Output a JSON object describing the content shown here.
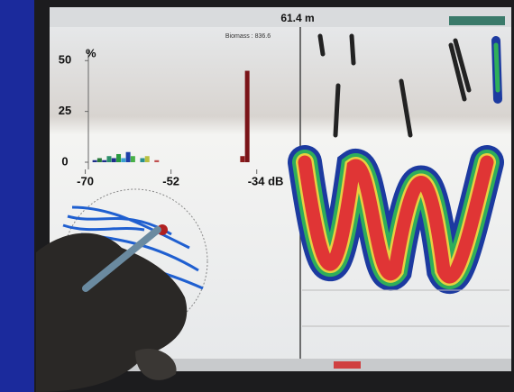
{
  "header": {
    "depth": "61.4 m",
    "biomass": "Biomass : 836.6"
  },
  "chart_data": {
    "type": "bar",
    "ylabel": "%",
    "x": [
      -68,
      -67,
      -66,
      -65,
      -64,
      -63,
      -62,
      -61,
      -60,
      -58,
      -57,
      -55,
      -37,
      -36
    ],
    "values": [
      1,
      2,
      1,
      3,
      2,
      4,
      2,
      5,
      3,
      2,
      3,
      1,
      3,
      45
    ],
    "colors": [
      "#1d2f8a",
      "#2a7a3a",
      "#1d2f8a",
      "#2c8f6a",
      "#1d2f8a",
      "#2a9a40",
      "#3aa0d0",
      "#1d3fa8",
      "#48b048",
      "#2a8f8f",
      "#b8c040",
      "#c05050",
      "#8a1a1a",
      "#7a1418"
    ],
    "xlim": [
      -72,
      -33
    ],
    "ylim": [
      0,
      55
    ],
    "xticks": [
      -70,
      -52,
      {
        "value": -34,
        "label": "-34 dB"
      }
    ],
    "yticks": [
      0,
      25,
      50
    ]
  }
}
